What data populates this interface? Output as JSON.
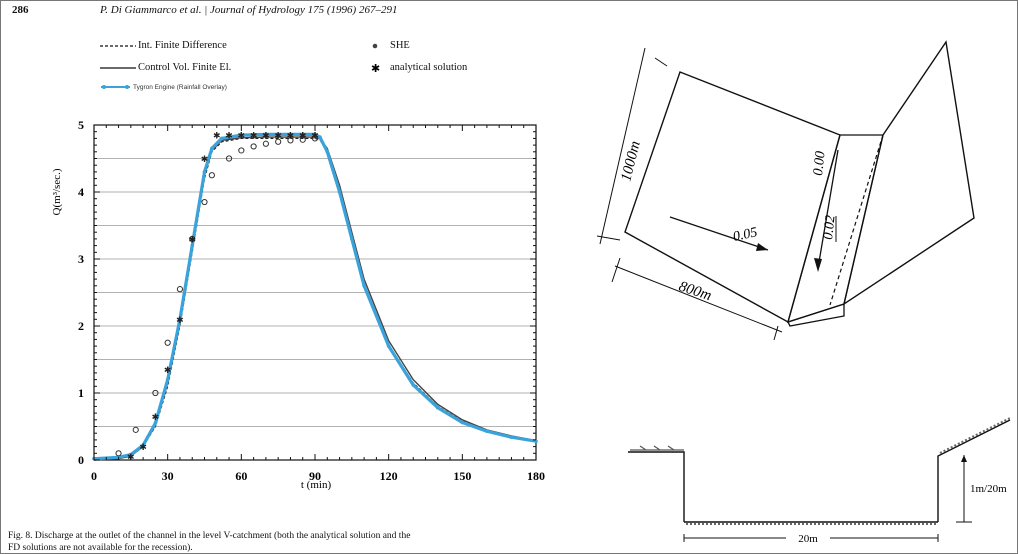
{
  "page": {
    "page_number": "286",
    "running_head": "P. Di Giammarco et al. | Journal of Hydrology 175 (1996) 267–291"
  },
  "legend": {
    "items": [
      {
        "label": "Int. Finite Difference",
        "style": "dashed"
      },
      {
        "label": "Control Vol. Finite El.",
        "style": "solid"
      },
      {
        "label": "Tygron Engine (Rainfall Overlay)",
        "style": "blue-line-dots",
        "color": "#3aa3dc"
      },
      {
        "label": "SHE",
        "style": "open-circle"
      },
      {
        "label": "analytical solution",
        "style": "star"
      }
    ]
  },
  "chart_data": {
    "type": "line",
    "title": "",
    "xlabel": "t (min)",
    "ylabel": "Q(m³/sec.)",
    "xlim": [
      0,
      180
    ],
    "ylim": [
      0,
      5
    ],
    "xticks": [
      "0",
      "30",
      "60",
      "90",
      "120",
      "150",
      "180"
    ],
    "yticks": [
      "0",
      "1",
      "2",
      "3",
      "4",
      "5"
    ],
    "grid": "horizontal",
    "series": [
      {
        "name": "Int. Finite Difference",
        "style": "dashed",
        "x": [
          0,
          10,
          15,
          20,
          25,
          30,
          35,
          40,
          45,
          48,
          52,
          60,
          70,
          80,
          90,
          92,
          95,
          100,
          105,
          110,
          120,
          130,
          140,
          150,
          160,
          170,
          180
        ],
        "y": [
          0,
          0.02,
          0.06,
          0.2,
          0.5,
          1.1,
          2.0,
          3.1,
          4.2,
          4.6,
          4.75,
          4.8,
          4.8,
          4.8,
          4.8,
          4.78,
          4.6,
          4.0,
          3.3,
          2.6,
          1.72,
          1.15,
          0.8,
          0.58,
          0.44,
          0.35,
          0.28
        ]
      },
      {
        "name": "Control Vol. Finite El.",
        "style": "solid",
        "x": [
          0,
          10,
          15,
          20,
          25,
          30,
          35,
          40,
          45,
          48,
          52,
          60,
          70,
          80,
          90,
          92,
          95,
          100,
          105,
          110,
          120,
          130,
          140,
          150,
          160,
          170,
          180
        ],
        "y": [
          0,
          0.02,
          0.06,
          0.2,
          0.52,
          1.15,
          2.05,
          3.15,
          4.25,
          4.62,
          4.77,
          4.81,
          4.82,
          4.82,
          4.82,
          4.8,
          4.65,
          4.1,
          3.4,
          2.7,
          1.78,
          1.2,
          0.83,
          0.6,
          0.45,
          0.36,
          0.29
        ]
      },
      {
        "name": "Tygron Engine (Rainfall Overlay)",
        "style": "blue",
        "color": "#3aa3dc",
        "x": [
          0,
          10,
          15,
          20,
          25,
          30,
          35,
          40,
          45,
          48,
          52,
          60,
          70,
          80,
          90,
          92,
          95,
          100,
          105,
          110,
          120,
          130,
          140,
          150,
          160,
          170,
          180
        ],
        "y": [
          0.02,
          0.04,
          0.08,
          0.22,
          0.55,
          1.2,
          2.1,
          3.2,
          4.3,
          4.65,
          4.8,
          4.85,
          4.86,
          4.86,
          4.86,
          4.82,
          4.6,
          4.0,
          3.3,
          2.6,
          1.7,
          1.12,
          0.78,
          0.56,
          0.43,
          0.34,
          0.28
        ]
      },
      {
        "name": "SHE",
        "style": "open-circle",
        "x": [
          10,
          17,
          25,
          30,
          35,
          40,
          45,
          48,
          55,
          60,
          65,
          70,
          75,
          80,
          85,
          90
        ],
        "y": [
          0.1,
          0.45,
          1.0,
          1.75,
          2.55,
          3.3,
          3.85,
          4.25,
          4.5,
          4.62,
          4.68,
          4.72,
          4.75,
          4.77,
          4.78,
          4.8
        ]
      },
      {
        "name": "analytical solution",
        "style": "star",
        "x": [
          15,
          20,
          25,
          30,
          35,
          40,
          45,
          50,
          55,
          60,
          65,
          70,
          75,
          80,
          85,
          90
        ],
        "y": [
          0.05,
          0.2,
          0.65,
          1.35,
          2.1,
          3.3,
          4.5,
          4.85,
          4.85,
          4.85,
          4.85,
          4.85,
          4.85,
          4.85,
          4.85,
          4.85
        ]
      }
    ]
  },
  "caption": {
    "line1": "Fig. 8. Discharge at the outlet of the channel in the level V-catchment (both the analytical solution and the",
    "line2": "FD solutions are not available for the recession)."
  },
  "diagram": {
    "length_label": "1000m",
    "width_label": "800m",
    "slope_plane": "0.05",
    "slope_channel_a": "0.00",
    "slope_channel_b": "0.02",
    "section_width": "20m",
    "section_depth": "1m/20m"
  }
}
